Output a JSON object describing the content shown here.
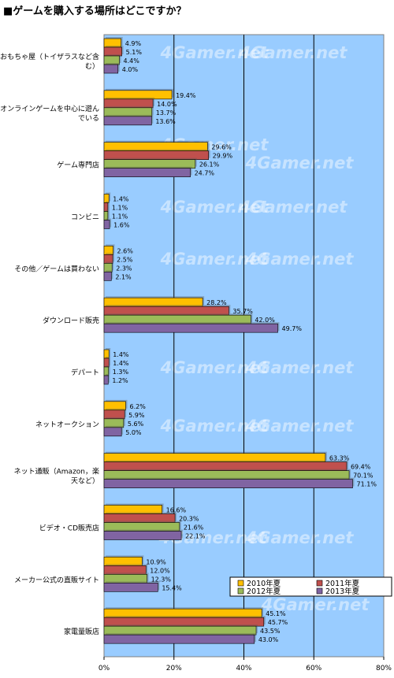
{
  "title": "■ゲームを購入する場所はどこですか？",
  "watermark": "4Gamer.net",
  "chart_data": {
    "type": "bar",
    "orientation": "horizontal",
    "title": "■ゲームを購入する場所はどこですか？",
    "categories": [
      "おもちゃ屋（トイザラスなど含む）",
      "オンラインゲームを中心に遊んでいる",
      "ゲーム専門店",
      "コンビニ",
      "その他／ゲームは買わない",
      "ダウンロード販売",
      "デパート",
      "ネットオークション",
      "ネット通販（Amazon，楽天など）",
      "ビデオ・CD販売店",
      "メーカー公式の直販サイト",
      "家電量販店"
    ],
    "series": [
      {
        "name": "2010年夏",
        "color": "#ffc000",
        "values": [
          4.9,
          19.4,
          29.6,
          1.4,
          2.6,
          28.2,
          1.4,
          6.2,
          63.3,
          16.6,
          10.9,
          45.1
        ]
      },
      {
        "name": "2011年夏",
        "color": "#c0504d",
        "values": [
          5.1,
          14.0,
          29.9,
          1.1,
          2.5,
          35.7,
          1.4,
          5.9,
          69.4,
          20.3,
          12.0,
          45.7
        ]
      },
      {
        "name": "2012年夏",
        "color": "#9bbb59",
        "values": [
          4.4,
          13.7,
          26.1,
          1.1,
          2.3,
          42.0,
          1.3,
          5.6,
          70.1,
          21.6,
          12.3,
          43.5
        ]
      },
      {
        "name": "2013年夏",
        "color": "#8064a2",
        "values": [
          4.0,
          13.6,
          24.7,
          1.6,
          2.1,
          49.7,
          1.2,
          5.0,
          71.1,
          22.1,
          15.4,
          43.0
        ]
      }
    ],
    "value_labels": [
      [
        "4.9%",
        "5.1%",
        "4.4%",
        "4.0%"
      ],
      [
        "19.4%",
        "14.0%",
        "13.7%",
        "13.6%"
      ],
      [
        "29.6%",
        "29.9%",
        "26.1%",
        "24.7%"
      ],
      [
        "1.4%",
        "1.1%",
        "1.1%",
        "1.6%"
      ],
      [
        "2.6%",
        "2.5%",
        "2.3%",
        "2.1%"
      ],
      [
        "28.2%",
        "35.7%",
        "42.0%",
        "49.7%"
      ],
      [
        "1.4%",
        "1.4%",
        "1.3%",
        "1.2%"
      ],
      [
        "6.2%",
        "5.9%",
        "5.6%",
        "5.0%"
      ],
      [
        "63.3%",
        "69.4%",
        "70.1%",
        "71.1%"
      ],
      [
        "16.6%",
        "20.3%",
        "21.6%",
        "22.1%"
      ],
      [
        "10.9%",
        "12.0%",
        "12.3%",
        "15.4%"
      ],
      [
        "45.1%",
        "45.7%",
        "43.5%",
        "43.0%"
      ]
    ],
    "xlim": [
      0,
      80
    ],
    "xticks": [
      0,
      20,
      40,
      60,
      80
    ],
    "xtick_labels": [
      "0%",
      "20%",
      "40%",
      "60%",
      "80%"
    ],
    "grid": true,
    "plot_background": "#99ccff",
    "legend_position": "lower-right"
  }
}
